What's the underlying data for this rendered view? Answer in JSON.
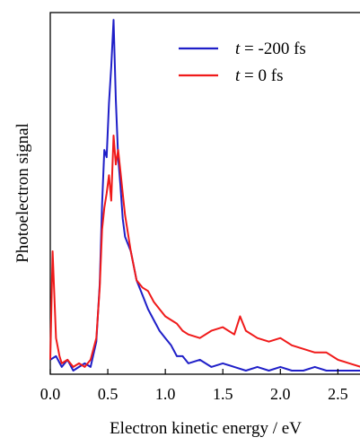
{
  "chart_data": {
    "type": "line",
    "xlabel": "Electron kinetic energy / eV",
    "ylabel": "Photoelectron signal",
    "xlim": [
      0.0,
      2.7
    ],
    "ylim": [
      0,
      1.0
    ],
    "xticks": [
      0.0,
      0.5,
      1.0,
      1.5,
      2.0,
      2.5
    ],
    "xtick_labels": [
      "0.0",
      "0.5",
      "1.0",
      "1.5",
      "2.0",
      "2.5"
    ],
    "grid": false,
    "legend_position": "top-right",
    "series": [
      {
        "name_prefix": "t",
        "name_value": " = -200 fs",
        "color": "#1f1fc8",
        "x": [
          0.0,
          0.05,
          0.1,
          0.15,
          0.2,
          0.25,
          0.3,
          0.35,
          0.4,
          0.43,
          0.45,
          0.47,
          0.49,
          0.51,
          0.53,
          0.55,
          0.57,
          0.59,
          0.61,
          0.63,
          0.65,
          0.7,
          0.75,
          0.8,
          0.85,
          0.9,
          0.95,
          1.0,
          1.05,
          1.1,
          1.15,
          1.2,
          1.3,
          1.4,
          1.5,
          1.6,
          1.7,
          1.8,
          1.9,
          2.0,
          2.1,
          2.2,
          2.3,
          2.4,
          2.5,
          2.6,
          2.7
        ],
        "y": [
          0.04,
          0.05,
          0.02,
          0.04,
          0.01,
          0.02,
          0.03,
          0.02,
          0.09,
          0.25,
          0.47,
          0.62,
          0.6,
          0.75,
          0.85,
          0.98,
          0.76,
          0.6,
          0.52,
          0.43,
          0.38,
          0.34,
          0.26,
          0.22,
          0.18,
          0.15,
          0.12,
          0.1,
          0.08,
          0.05,
          0.05,
          0.03,
          0.04,
          0.02,
          0.03,
          0.02,
          0.01,
          0.02,
          0.01,
          0.02,
          0.01,
          0.01,
          0.02,
          0.01,
          0.01,
          0.01,
          0.01
        ]
      },
      {
        "name_prefix": "t",
        "name_value": " = 0 fs",
        "color": "#f01a1a",
        "x": [
          0.0,
          0.02,
          0.05,
          0.08,
          0.1,
          0.15,
          0.2,
          0.25,
          0.3,
          0.35,
          0.4,
          0.43,
          0.45,
          0.47,
          0.49,
          0.51,
          0.53,
          0.55,
          0.57,
          0.59,
          0.61,
          0.63,
          0.65,
          0.7,
          0.75,
          0.8,
          0.85,
          0.9,
          0.95,
          1.0,
          1.05,
          1.1,
          1.15,
          1.2,
          1.3,
          1.4,
          1.5,
          1.6,
          1.65,
          1.7,
          1.8,
          1.9,
          2.0,
          2.1,
          2.2,
          2.3,
          2.4,
          2.5,
          2.6,
          2.7
        ],
        "y": [
          0.04,
          0.34,
          0.1,
          0.05,
          0.03,
          0.04,
          0.02,
          0.03,
          0.02,
          0.04,
          0.1,
          0.24,
          0.4,
          0.46,
          0.5,
          0.55,
          0.48,
          0.66,
          0.58,
          0.62,
          0.56,
          0.5,
          0.44,
          0.34,
          0.26,
          0.24,
          0.23,
          0.2,
          0.18,
          0.16,
          0.15,
          0.14,
          0.12,
          0.11,
          0.1,
          0.12,
          0.13,
          0.11,
          0.16,
          0.12,
          0.1,
          0.09,
          0.1,
          0.08,
          0.07,
          0.06,
          0.06,
          0.04,
          0.03,
          0.02
        ]
      }
    ]
  }
}
